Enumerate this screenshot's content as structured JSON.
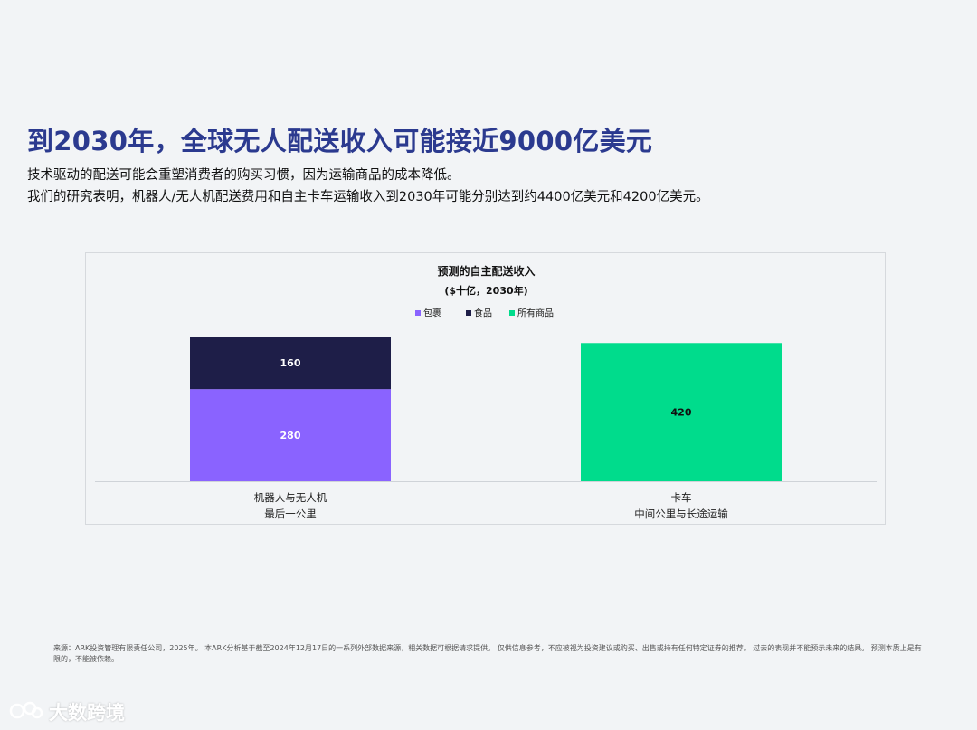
{
  "page": {
    "headline": "到2030年，全球无人配送收入可能接近9000亿美元",
    "subtitle_1": "技术驱动的配送可能会重塑消费者的购买习惯，因为运输商品的成本降低。",
    "subtitle_2": "我们的研究表明，机器人/无人机配送费用和自主卡车运输收入到2030年可能分别达到约4400亿美元和4200亿美元。",
    "footer": "来源：ARK投资管理有限责任公司，2025年。 本ARK分析基于截至2024年12月17日的一系列外部数据来源，相关数据可根据请求提供。 仅供信息参考，不应被视为投资建议或购买、出售或持有任何特定证券的推荐。 过去的表现并不能预示未来的结果。 预测本质上是有限的，不能被依赖。",
    "watermark": "大数跨境"
  },
  "chart_data": {
    "type": "bar",
    "stacked": true,
    "title": "预测的自主配送收入",
    "subtitle": "($十亿，2030年)",
    "legend_position": "top-center",
    "grid": false,
    "ylim": [
      0,
      440
    ],
    "categories": [
      [
        "机器人与无人机",
        "最后一公里"
      ],
      [
        "卡车",
        "中间公里与长途运输"
      ]
    ],
    "series": [
      {
        "name": "包裹",
        "color": "#8a63ff",
        "label_color": "#ffffff",
        "values": [
          280,
          null
        ]
      },
      {
        "name": "食品",
        "color": "#1e1e48",
        "label_color": "#ffffff",
        "values": [
          160,
          null
        ]
      },
      {
        "name": "所有商品",
        "color": "#00dc8c",
        "label_color": "#111111",
        "values": [
          null,
          420
        ]
      }
    ]
  }
}
